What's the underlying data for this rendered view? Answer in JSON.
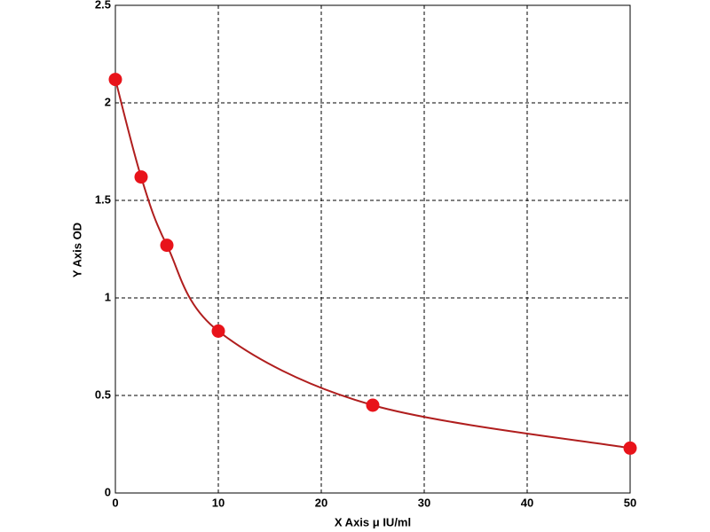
{
  "chart_data": {
    "type": "line",
    "x_label": "X Axis μ IU/ml",
    "y_label": "Y Axis OD",
    "x": [
      0,
      2.5,
      5,
      10,
      25,
      50
    ],
    "values": [
      2.12,
      1.62,
      1.27,
      0.83,
      0.45,
      0.23
    ],
    "line_color": "#b01e1e",
    "marker_color": "#e8131a",
    "xlim": [
      0,
      50
    ],
    "xticks": [
      0,
      10,
      20,
      30,
      40,
      50
    ],
    "ylim": [
      0,
      2.5
    ],
    "yticks": [
      0,
      0.5,
      1,
      1.5,
      2,
      2.5
    ],
    "grid": true
  }
}
